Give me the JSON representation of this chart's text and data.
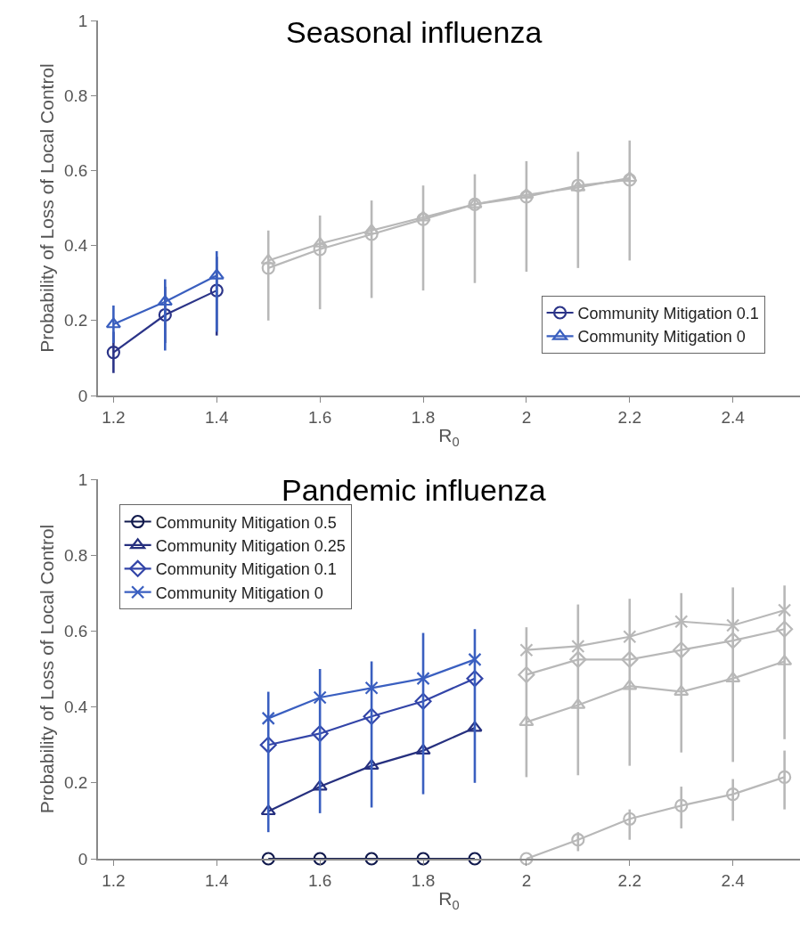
{
  "chart_data": [
    {
      "type": "line",
      "title": "Seasonal influenza",
      "xlabel": "R$_{0}$",
      "ylabel": "Probability of Loss of Local Control",
      "xlim": [
        1.17,
        2.53
      ],
      "xticks": [
        1.2,
        1.4,
        1.6,
        1.8,
        2,
        2.2,
        2.4
      ],
      "ylim": [
        0,
        1
      ],
      "yticks": [
        0,
        0.2,
        0.4,
        0.6,
        0.8,
        1
      ],
      "legend": "bottom right",
      "series": [
        {
          "name": "Community Mitigation 0.1",
          "color": "#2b3488",
          "marker": "circle",
          "x": [
            1.2,
            1.3,
            1.4
          ],
          "values": [
            0.115,
            0.215,
            0.28
          ],
          "errors": [
            [
              0.06,
              0.17
            ],
            [
              0.14,
              0.29
            ],
            [
              0.16,
              0.37
            ]
          ]
        },
        {
          "name": "Community Mitigation 0",
          "color": "#3a5fbf",
          "marker": "triangle",
          "x": [
            1.2,
            1.3,
            1.4
          ],
          "values": [
            0.19,
            0.25,
            0.32
          ],
          "errors": [
            [
              0.14,
              0.24
            ],
            [
              0.12,
              0.31
            ],
            [
              0.17,
              0.385
            ]
          ]
        },
        {
          "color": "#b8b8b8",
          "marker": "circle",
          "x": [
            1.5,
            1.6,
            1.7,
            1.8,
            1.9,
            2.0,
            2.1,
            2.2
          ],
          "values": [
            0.34,
            0.39,
            0.43,
            0.47,
            0.51,
            0.53,
            0.56,
            0.575
          ]
        },
        {
          "color": "#b8b8b8",
          "marker": "triangle",
          "x": [
            1.5,
            1.6,
            1.7,
            1.8,
            1.9,
            2.0,
            2.1,
            2.2
          ],
          "values": [
            0.36,
            0.405,
            0.44,
            0.475,
            0.51,
            0.535,
            0.555,
            0.58
          ],
          "errors": [
            [
              0.2,
              0.44
            ],
            [
              0.23,
              0.48
            ],
            [
              0.26,
              0.52
            ],
            [
              0.28,
              0.56
            ],
            [
              0.3,
              0.59
            ],
            [
              0.33,
              0.625
            ],
            [
              0.34,
              0.65
            ],
            [
              0.36,
              0.68
            ]
          ]
        }
      ]
    },
    {
      "type": "line",
      "title": "Pandemic influenza",
      "xlabel": "R$_{0}$",
      "ylabel": "Probability of Loss of Local Control",
      "xlim": [
        1.17,
        2.53
      ],
      "xticks": [
        1.2,
        1.4,
        1.6,
        1.8,
        2,
        2.2,
        2.4
      ],
      "ylim": [
        0,
        1
      ],
      "yticks": [
        0,
        0.2,
        0.4,
        0.6,
        0.8,
        1
      ],
      "legend": "top left",
      "series": [
        {
          "name": "Community Mitigation 0.5",
          "color": "#111a4d",
          "marker": "circle",
          "x": [
            1.5,
            1.6,
            1.7,
            1.8,
            1.9
          ],
          "values": [
            0,
            0,
            0,
            0,
            0
          ]
        },
        {
          "name": "Community Mitigation 0.25",
          "color": "#26307f",
          "marker": "triangle",
          "x": [
            1.5,
            1.6,
            1.7,
            1.8,
            1.9
          ],
          "values": [
            0.125,
            0.19,
            0.245,
            0.285,
            0.345
          ]
        },
        {
          "name": "Community Mitigation 0.1",
          "color": "#3345a8",
          "marker": "diamond",
          "x": [
            1.5,
            1.6,
            1.7,
            1.8,
            1.9
          ],
          "values": [
            0.3,
            0.33,
            0.375,
            0.415,
            0.475
          ]
        },
        {
          "name": "Community Mitigation 0",
          "color": "#3a5fc0",
          "marker": "cross",
          "x": [
            1.5,
            1.6,
            1.7,
            1.8,
            1.9
          ],
          "values": [
            0.37,
            0.425,
            0.45,
            0.475,
            0.525
          ],
          "errors": [
            [
              0.07,
              0.44
            ],
            [
              0.12,
              0.5
            ],
            [
              0.135,
              0.52
            ],
            [
              0.17,
              0.595
            ],
            [
              0.2,
              0.605
            ]
          ]
        },
        {
          "color": "#b8b8b8",
          "marker": "circle",
          "x": [
            2.0,
            2.1,
            2.2,
            2.3,
            2.4,
            2.5
          ],
          "values": [
            0,
            0.05,
            0.105,
            0.14,
            0.17,
            0.215
          ],
          "errors": [
            null,
            [
              0.02,
              0.07
            ],
            [
              0.05,
              0.13
            ],
            [
              0.08,
              0.19
            ],
            [
              0.1,
              0.21
            ],
            [
              0.13,
              0.285
            ]
          ]
        },
        {
          "color": "#b8b8b8",
          "marker": "triangle",
          "x": [
            2.0,
            2.1,
            2.2,
            2.3,
            2.4,
            2.5
          ],
          "values": [
            0.36,
            0.405,
            0.455,
            0.44,
            0.475,
            0.52
          ]
        },
        {
          "color": "#b8b8b8",
          "marker": "diamond",
          "x": [
            2.0,
            2.1,
            2.2,
            2.3,
            2.4,
            2.5
          ],
          "values": [
            0.485,
            0.525,
            0.525,
            0.55,
            0.575,
            0.605
          ]
        },
        {
          "color": "#b8b8b8",
          "marker": "cross",
          "x": [
            2.0,
            2.1,
            2.2,
            2.3,
            2.4,
            2.5
          ],
          "values": [
            0.55,
            0.56,
            0.585,
            0.625,
            0.615,
            0.655
          ],
          "errors": [
            [
              0.215,
              0.61
            ],
            [
              0.22,
              0.67
            ],
            [
              0.245,
              0.685
            ],
            [
              0.28,
              0.7
            ],
            [
              0.255,
              0.715
            ],
            [
              0.315,
              0.72
            ]
          ]
        }
      ]
    }
  ]
}
